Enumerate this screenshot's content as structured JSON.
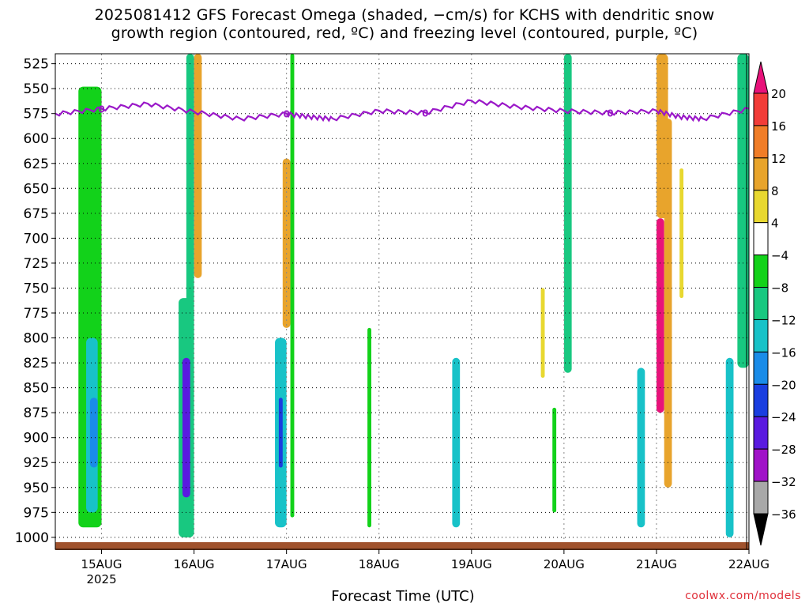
{
  "title": {
    "line1": "2025081412 GFS Forecast Omega (shaded, −cm/s) for KCHS with dendritic snow",
    "line2": "growth region (contoured, red, ºC) and freezing level (contoured, purple, ºC)"
  },
  "credit": "coolwx.com/models",
  "chart_data": {
    "type": "heatmap",
    "title": "2025081412 GFS Forecast Omega (shaded, −cm/s) for KCHS with dendritic snow growth region (contoured, red, ºC) and freezing level (contoured, purple, ºC)",
    "xlabel": "Forecast Time (UTC)",
    "ylabel": "",
    "x_range": [
      "2025-08-14T12:00",
      "2025-08-22T00:00"
    ],
    "x_ticks": [
      {
        "date": "2025-08-15T00:00",
        "label": "15AUG",
        "sublabel": "2025"
      },
      {
        "date": "2025-08-16T00:00",
        "label": "16AUG",
        "sublabel": ""
      },
      {
        "date": "2025-08-17T00:00",
        "label": "17AUG",
        "sublabel": ""
      },
      {
        "date": "2025-08-18T00:00",
        "label": "18AUG",
        "sublabel": ""
      },
      {
        "date": "2025-08-19T00:00",
        "label": "19AUG",
        "sublabel": ""
      },
      {
        "date": "2025-08-20T00:00",
        "label": "20AUG",
        "sublabel": ""
      },
      {
        "date": "2025-08-21T00:00",
        "label": "21AUG",
        "sublabel": ""
      },
      {
        "date": "2025-08-22T00:00",
        "label": "22AUG",
        "sublabel": ""
      }
    ],
    "y_axis": {
      "units": "hPa",
      "reversed": true,
      "range": [
        1012,
        515
      ],
      "ticks": [
        525,
        550,
        575,
        600,
        625,
        650,
        675,
        700,
        725,
        750,
        775,
        800,
        825,
        850,
        875,
        900,
        925,
        950,
        975,
        1000
      ]
    },
    "grid": true,
    "colorbar": {
      "placement": "right",
      "labels": [
        20,
        16,
        12,
        8,
        4,
        -4,
        -8,
        -12,
        -16,
        -20,
        -24,
        -28,
        -32,
        -36
      ],
      "bins": [
        {
          "label": ">20",
          "color": "#e8127a"
        },
        {
          "label": "16 to 20",
          "color": "#f23c38"
        },
        {
          "label": "12 to 16",
          "color": "#f07d28"
        },
        {
          "label": "8 to 12",
          "color": "#e8a42c"
        },
        {
          "label": "4 to 8",
          "color": "#e8d830"
        },
        {
          "label": "-4 to 4",
          "color": "#ffffff"
        },
        {
          "label": "-8 to -4",
          "color": "#12d21a"
        },
        {
          "label": "-12 to -8",
          "color": "#18c880"
        },
        {
          "label": "-16 to -12",
          "color": "#18c2c8"
        },
        {
          "label": "-20 to -16",
          "color": "#1a8ce8"
        },
        {
          "label": "-24 to -20",
          "color": "#1a3ee0"
        },
        {
          "label": "-28 to -24",
          "color": "#5a1ae0"
        },
        {
          "label": "-32 to -28",
          "color": "#a012c8"
        },
        {
          "label": "-36 to -32",
          "color": "#a8a8a8"
        },
        {
          "label": "<-36",
          "color": "#000000"
        }
      ]
    },
    "omega_features": [
      {
        "t_start": "2025-08-14T18:00",
        "t_end": "2025-08-15T00:00",
        "p_top": 548,
        "p_bottom": 990,
        "value": -6
      },
      {
        "t_start": "2025-08-14T20:00",
        "t_end": "2025-08-14T23:00",
        "p_top": 800,
        "p_bottom": 975,
        "value": -14
      },
      {
        "t_start": "2025-08-14T21:00",
        "t_end": "2025-08-14T23:00",
        "p_top": 860,
        "p_bottom": 930,
        "value": -18
      },
      {
        "t_start": "2025-08-15T20:00",
        "t_end": "2025-08-16T00:00",
        "p_top": 760,
        "p_bottom": 1000,
        "value": -10
      },
      {
        "t_start": "2025-08-15T21:00",
        "t_end": "2025-08-15T23:00",
        "p_top": 820,
        "p_bottom": 960,
        "value": -24
      },
      {
        "t_start": "2025-08-15T22:00",
        "t_end": "2025-08-16T00:00",
        "p_top": 515,
        "p_bottom": 770,
        "value": -10
      },
      {
        "t_start": "2025-08-16T00:00",
        "t_end": "2025-08-16T02:00",
        "p_top": 515,
        "p_bottom": 740,
        "value": 12
      },
      {
        "t_start": "2025-08-16T21:00",
        "t_end": "2025-08-17T00:00",
        "p_top": 800,
        "p_bottom": 990,
        "value": -12
      },
      {
        "t_start": "2025-08-16T22:00",
        "t_end": "2025-08-16T23:00",
        "p_top": 860,
        "p_bottom": 930,
        "value": -22
      },
      {
        "t_start": "2025-08-16T23:00",
        "t_end": "2025-08-17T01:00",
        "p_top": 620,
        "p_bottom": 790,
        "value": 10
      },
      {
        "t_start": "2025-08-17T01:00",
        "t_end": "2025-08-17T02:00",
        "p_top": 515,
        "p_bottom": 980,
        "value": -6
      },
      {
        "t_start": "2025-08-17T21:00",
        "t_end": "2025-08-17T22:00",
        "p_top": 790,
        "p_bottom": 990,
        "value": -6
      },
      {
        "t_start": "2025-08-18T19:00",
        "t_end": "2025-08-18T21:00",
        "p_top": 820,
        "p_bottom": 990,
        "value": -12
      },
      {
        "t_start": "2025-08-19T18:00",
        "t_end": "2025-08-19T19:00",
        "p_top": 750,
        "p_bottom": 840,
        "value": 6
      },
      {
        "t_start": "2025-08-19T21:00",
        "t_end": "2025-08-19T22:00",
        "p_top": 870,
        "p_bottom": 975,
        "value": -6
      },
      {
        "t_start": "2025-08-20T00:00",
        "t_end": "2025-08-20T02:00",
        "p_top": 515,
        "p_bottom": 835,
        "value": -8
      },
      {
        "t_start": "2025-08-20T19:00",
        "t_end": "2025-08-20T21:00",
        "p_top": 830,
        "p_bottom": 990,
        "value": -12
      },
      {
        "t_start": "2025-08-21T00:00",
        "t_end": "2025-08-21T02:00",
        "p_top": 680,
        "p_bottom": 875,
        "value": 22
      },
      {
        "t_start": "2025-08-21T00:00",
        "t_end": "2025-08-21T03:00",
        "p_top": 515,
        "p_bottom": 680,
        "value": 12
      },
      {
        "t_start": "2025-08-21T02:00",
        "t_end": "2025-08-21T04:00",
        "p_top": 580,
        "p_bottom": 950,
        "value": 10
      },
      {
        "t_start": "2025-08-21T06:00",
        "t_end": "2025-08-21T07:00",
        "p_top": 630,
        "p_bottom": 760,
        "value": 6
      },
      {
        "t_start": "2025-08-21T18:00",
        "t_end": "2025-08-21T20:00",
        "p_top": 820,
        "p_bottom": 1000,
        "value": -14
      },
      {
        "t_start": "2025-08-21T21:00",
        "t_end": "2025-08-22T00:00",
        "p_top": 515,
        "p_bottom": 830,
        "value": -8
      }
    ],
    "freezing_level": {
      "label": "0",
      "color": "#9a18c8",
      "times": [
        "2025-08-14T12:00",
        "2025-08-15T00:00",
        "2025-08-15T12:00",
        "2025-08-16T00:00",
        "2025-08-16T12:00",
        "2025-08-17T00:00",
        "2025-08-17T06:00",
        "2025-08-17T12:00",
        "2025-08-18T00:00",
        "2025-08-18T12:00",
        "2025-08-19T00:00",
        "2025-08-19T12:00",
        "2025-08-20T00:00",
        "2025-08-20T12:00",
        "2025-08-21T00:00",
        "2025-08-21T06:00",
        "2025-08-21T12:00",
        "2025-08-22T00:00"
      ],
      "pressures": [
        575,
        570,
        565,
        573,
        580,
        575,
        578,
        580,
        572,
        574,
        562,
        568,
        572,
        574,
        572,
        578,
        580,
        570
      ]
    }
  },
  "x_axis_title": "Forecast Time (UTC)"
}
